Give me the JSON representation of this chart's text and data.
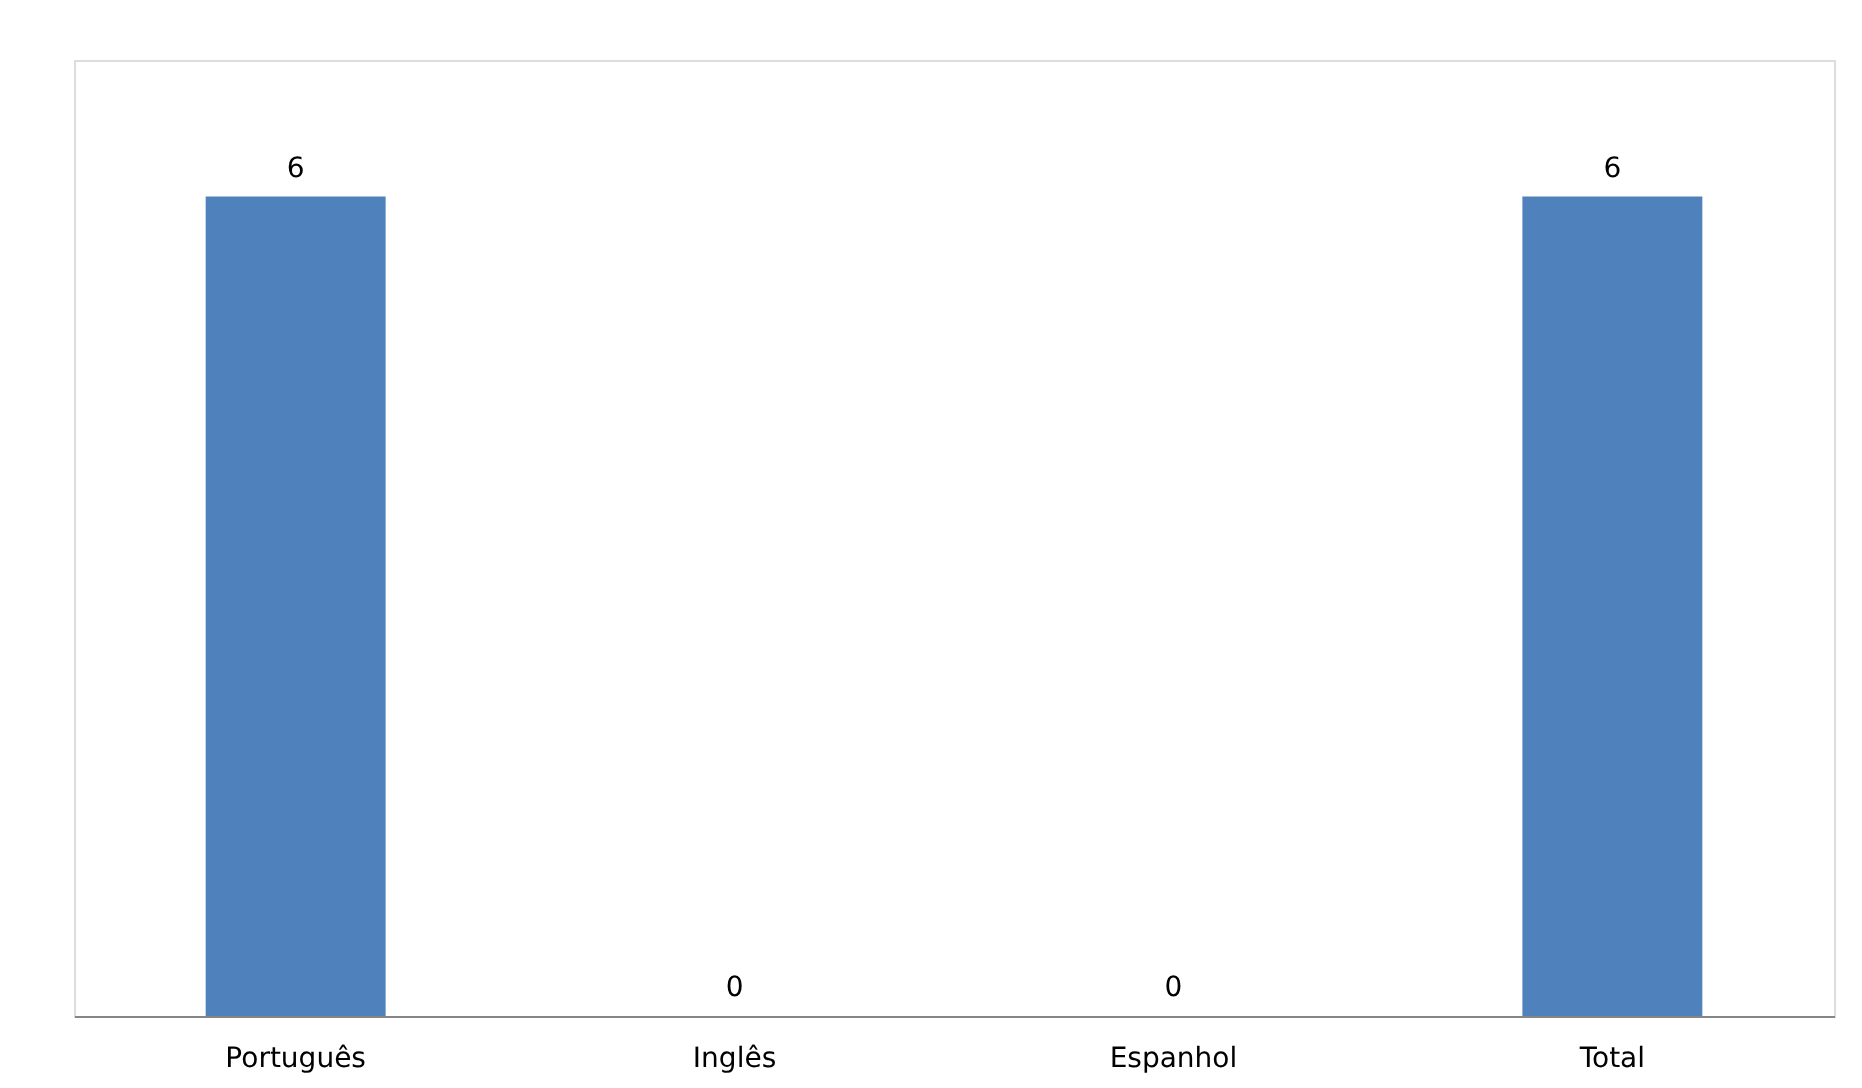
{
  "chart_data": {
    "type": "bar",
    "categories": [
      "Português",
      "Inglês",
      "Espanhol",
      "Total"
    ],
    "values": [
      6,
      0,
      0,
      6
    ],
    "color": "#4f81bd",
    "ylim": [
      0,
      7
    ],
    "data_labels": true,
    "grid": false
  }
}
